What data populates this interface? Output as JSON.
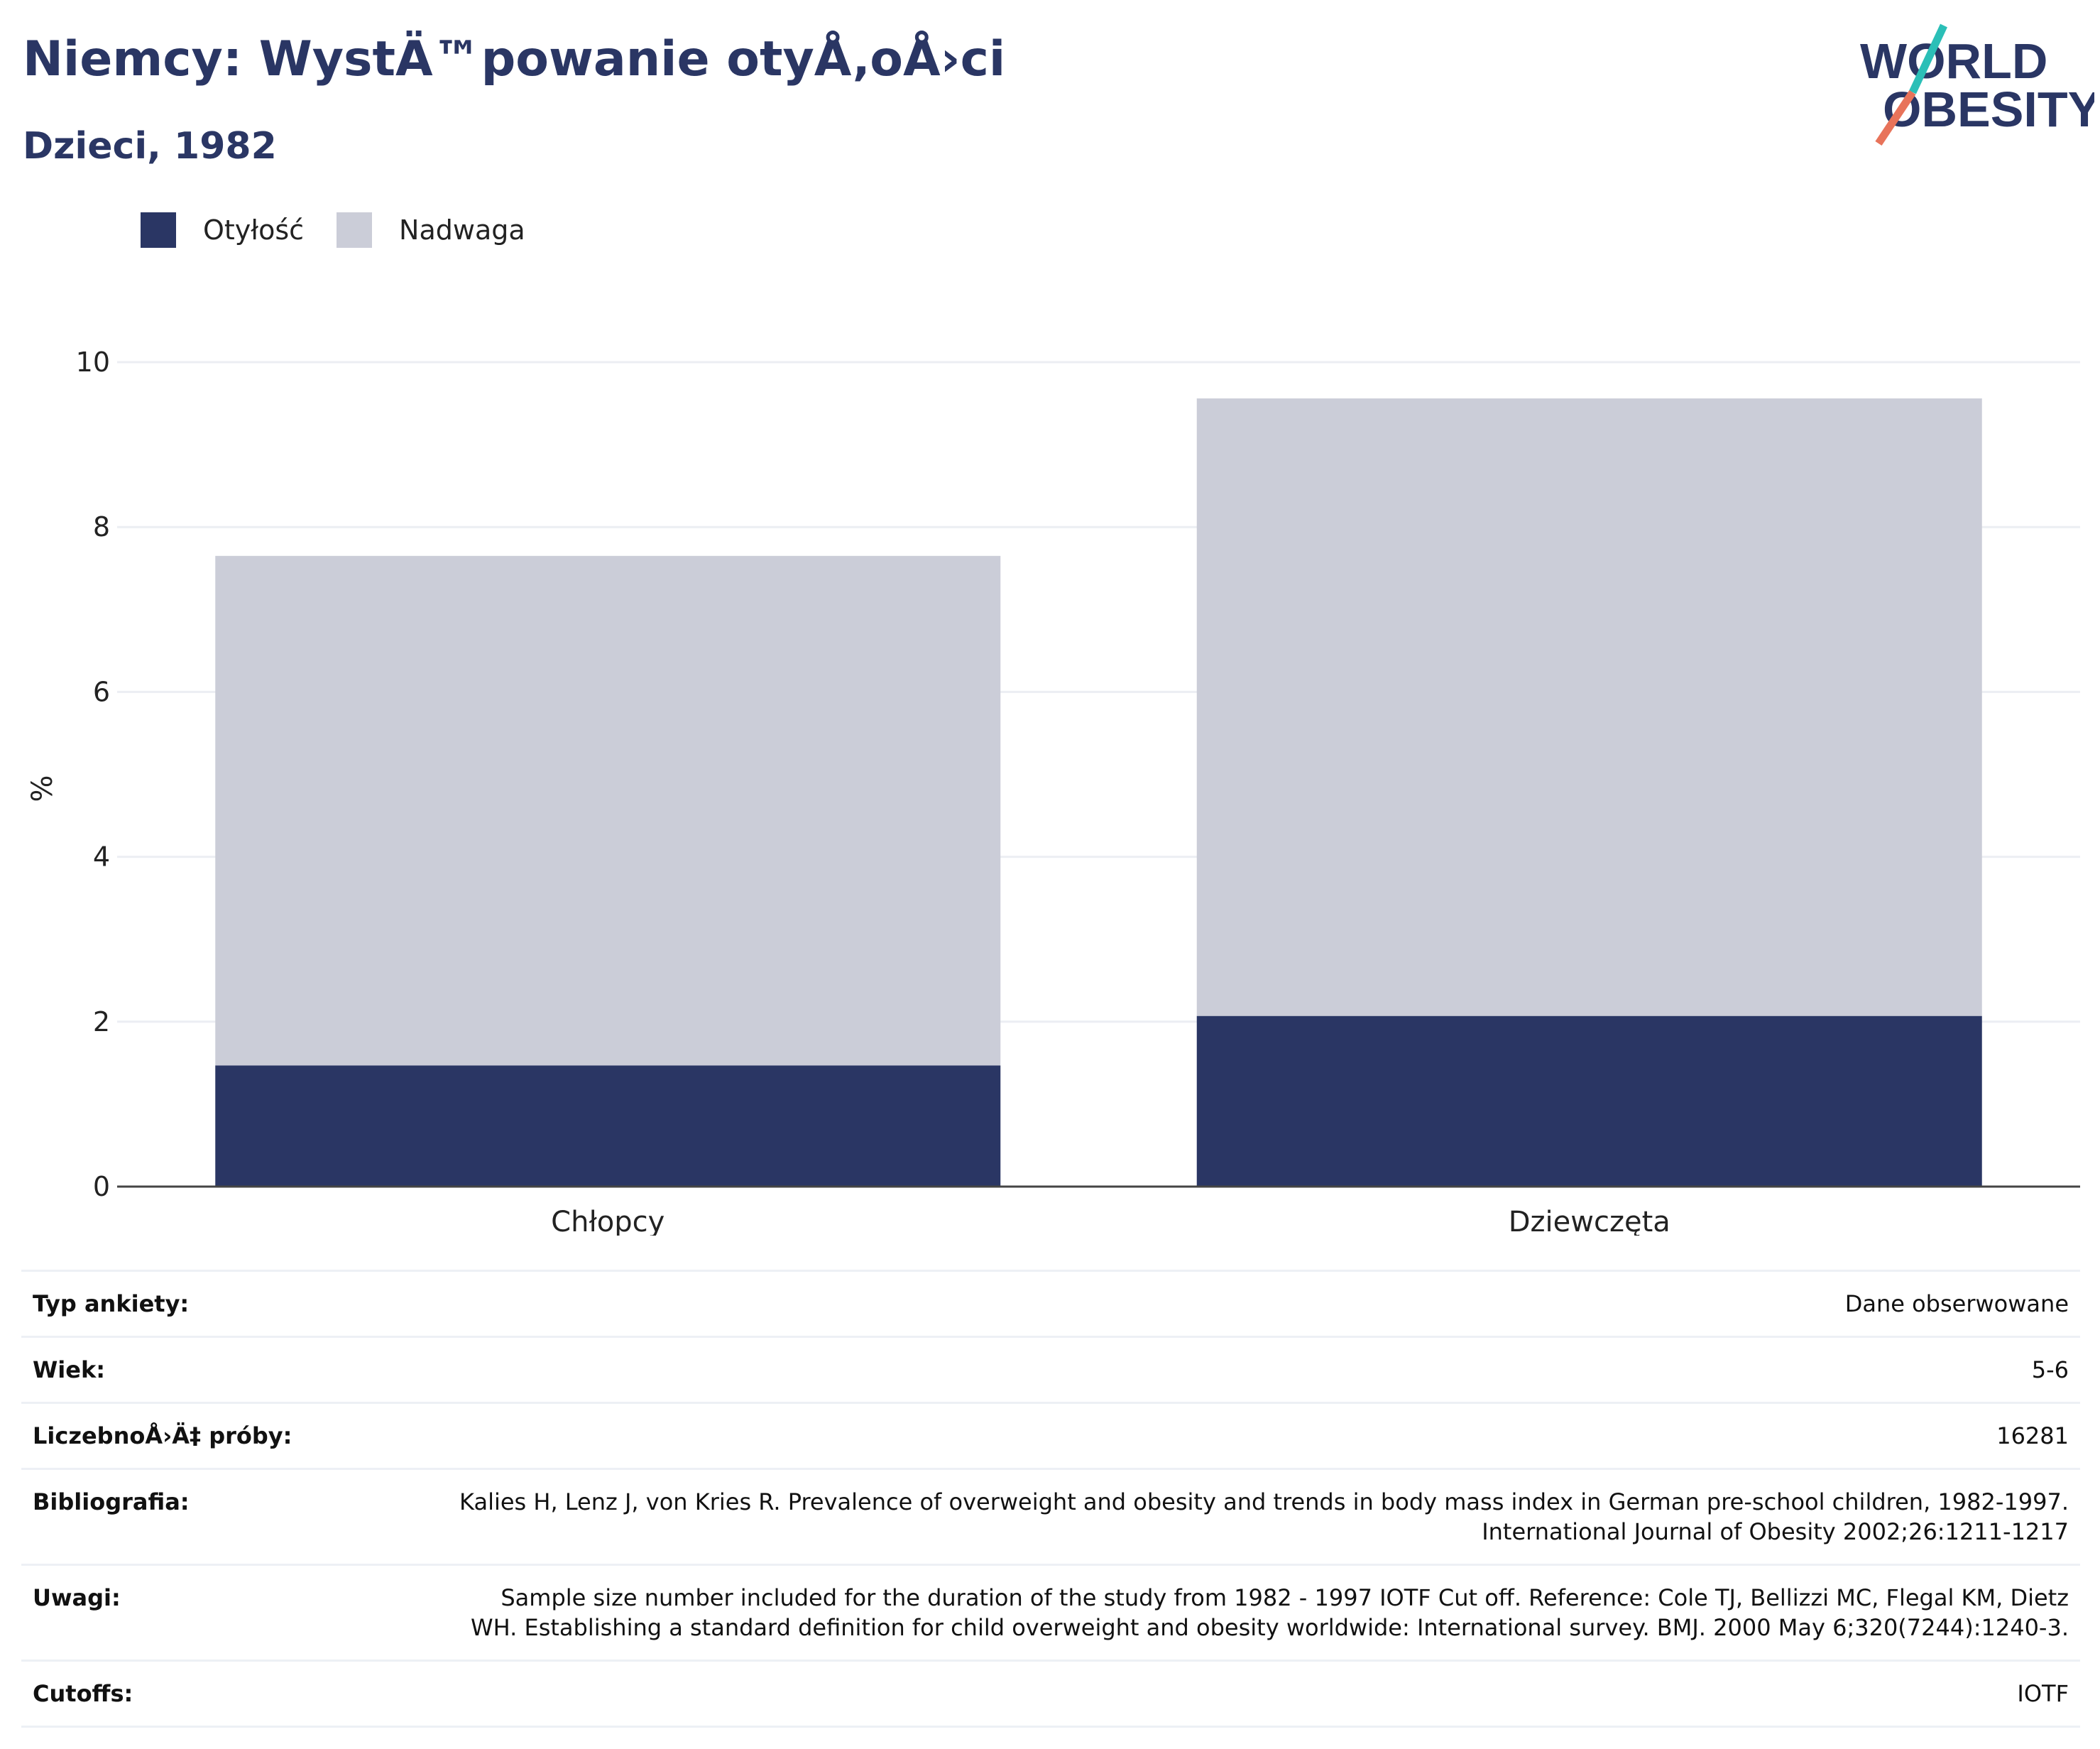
{
  "header": {
    "title": "Niemcy: WystÄ™powanie otyÅ‚oÅ›ci",
    "subtitle": "Dzieci, 1982"
  },
  "logo": {
    "line1": "WORLD",
    "line2": "OBESITY"
  },
  "colors": {
    "obesity": "#2a3664",
    "overweight": "#cbcdd8",
    "text_primary": "#2a3664",
    "logo_teal": "#2bbfb7",
    "logo_coral": "#e8735a"
  },
  "chart_data": {
    "type": "bar",
    "stacked": true,
    "categories": [
      "Chłopcy",
      "Dziewczęta"
    ],
    "series": [
      {
        "name": "Otyłość",
        "color": "#2a3664",
        "values": [
          1.47,
          2.07
        ]
      },
      {
        "name": "Nadwaga",
        "color": "#cbcdd8",
        "values": [
          6.18,
          7.49
        ]
      }
    ],
    "ylabel": "%",
    "ylim": [
      0,
      10
    ],
    "yticks": [
      "0",
      "2",
      "4",
      "6",
      "8",
      "10"
    ],
    "grid": true,
    "legend_position": "top-left"
  },
  "meta_rows": [
    {
      "label": "Typ ankiety:",
      "value": "Dane obserwowane"
    },
    {
      "label": "Wiek:",
      "value": "5-6"
    },
    {
      "label": "LiczebnoÅ›Ä‡ próby:",
      "value": "16281"
    },
    {
      "label": "Bibliografia:",
      "value": "Kalies H, Lenz J, von Kries R. Prevalence of overweight and obesity and trends in body mass index in German pre-school children, 1982-1997. International Journal of Obesity 2002;26:1211-1217"
    },
    {
      "label": "Uwagi:",
      "value": "Sample size number included for the duration of the study from 1982 - 1997 IOTF Cut off. Reference: Cole TJ, Bellizzi MC, Flegal KM, Dietz WH. Establishing a standard definition for child overweight and obesity worldwide: International survey. BMJ. 2000 May 6;320(7244):1240-3."
    },
    {
      "label": "Cutoffs:",
      "value": "IOTF"
    }
  ]
}
